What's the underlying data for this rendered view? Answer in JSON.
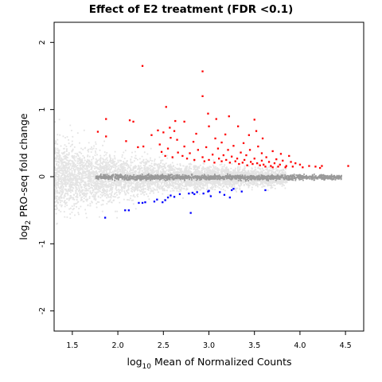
{
  "chart_data": {
    "type": "scatter",
    "title": "Effect of E2 treatment (FDR <0.1)",
    "xlabel": {
      "main": "log",
      "sub": "10",
      "rest": " Mean of Normalized Counts"
    },
    "ylabel": {
      "main": "log",
      "sub": "2",
      "rest": " PRO-seq fold change"
    },
    "xlim": [
      1.3,
      4.7
    ],
    "ylim": [
      -2.3,
      2.3
    ],
    "x_ticks": [
      1.5,
      2.0,
      2.5,
      3.0,
      3.5,
      4.0,
      4.5
    ],
    "x_tick_labels": [
      "1.5",
      "2.0",
      "2.5",
      "3.0",
      "3.5",
      "4.0",
      "4.5"
    ],
    "y_ticks": [
      -2,
      -1,
      0,
      1,
      2
    ],
    "y_tick_labels": [
      "-2",
      "-1",
      "0",
      "1",
      "2"
    ],
    "colors": {
      "background_points": "#e4e4e4",
      "nonsignificant": "#999999",
      "upregulated": "#ff0000",
      "downregulated": "#0000ff"
    },
    "series": [
      {
        "role": "upregulated",
        "points": [
          [
            2.27,
            1.65
          ],
          [
            2.93,
            1.57
          ],
          [
            2.93,
            1.2
          ],
          [
            2.53,
            1.04
          ],
          [
            2.99,
            0.94
          ],
          [
            3.22,
            0.9
          ],
          [
            3.08,
            0.86
          ],
          [
            3.5,
            0.85
          ],
          [
            2.13,
            0.84
          ],
          [
            2.17,
            0.82
          ],
          [
            1.87,
            0.86
          ],
          [
            2.63,
            0.83
          ],
          [
            2.73,
            0.82
          ],
          [
            3.0,
            0.75
          ],
          [
            3.32,
            0.75
          ],
          [
            2.57,
            0.73
          ],
          [
            2.44,
            0.69
          ],
          [
            1.78,
            0.67
          ],
          [
            2.62,
            0.68
          ],
          [
            3.52,
            0.68
          ],
          [
            2.5,
            0.66
          ],
          [
            2.86,
            0.64
          ],
          [
            3.18,
            0.63
          ],
          [
            3.44,
            0.62
          ],
          [
            2.37,
            0.62
          ],
          [
            1.87,
            0.6
          ],
          [
            2.58,
            0.58
          ],
          [
            3.07,
            0.57
          ],
          [
            3.59,
            0.57
          ],
          [
            2.65,
            0.55
          ],
          [
            2.09,
            0.53
          ],
          [
            2.83,
            0.52
          ],
          [
            3.14,
            0.51
          ],
          [
            3.38,
            0.5
          ],
          [
            2.46,
            0.48
          ],
          [
            2.28,
            0.45
          ],
          [
            2.22,
            0.44
          ],
          [
            2.73,
            0.45
          ],
          [
            3.27,
            0.46
          ],
          [
            3.54,
            0.45
          ],
          [
            2.97,
            0.44
          ],
          [
            2.55,
            0.42
          ],
          [
            3.1,
            0.42
          ],
          [
            2.88,
            0.4
          ],
          [
            3.21,
            0.4
          ],
          [
            3.45,
            0.4
          ],
          [
            3.7,
            0.38
          ],
          [
            2.48,
            0.37
          ],
          [
            2.66,
            0.36
          ],
          [
            2.79,
            0.35
          ],
          [
            3.35,
            0.36
          ],
          [
            3.58,
            0.35
          ],
          [
            3.79,
            0.34
          ],
          [
            3.04,
            0.33
          ],
          [
            2.52,
            0.31
          ],
          [
            2.71,
            0.31
          ],
          [
            3.16,
            0.32
          ],
          [
            3.41,
            0.32
          ],
          [
            3.88,
            0.31
          ],
          [
            2.6,
            0.29
          ],
          [
            2.93,
            0.29
          ],
          [
            3.25,
            0.3
          ],
          [
            3.63,
            0.29
          ],
          [
            2.76,
            0.27
          ],
          [
            3.11,
            0.27
          ],
          [
            3.31,
            0.27
          ],
          [
            3.5,
            0.27
          ],
          [
            3.74,
            0.26
          ],
          [
            2.84,
            0.25
          ],
          [
            3.0,
            0.25
          ],
          [
            3.19,
            0.25
          ],
          [
            3.39,
            0.25
          ],
          [
            3.58,
            0.24
          ],
          [
            3.81,
            0.24
          ],
          [
            2.95,
            0.23
          ],
          [
            3.14,
            0.23
          ],
          [
            3.29,
            0.23
          ],
          [
            3.46,
            0.22
          ],
          [
            3.66,
            0.22
          ],
          [
            3.9,
            0.22
          ],
          [
            3.06,
            0.21
          ],
          [
            3.23,
            0.21
          ],
          [
            3.37,
            0.21
          ],
          [
            3.53,
            0.2
          ],
          [
            3.72,
            0.2
          ],
          [
            3.95,
            0.2
          ],
          [
            3.33,
            0.19
          ],
          [
            3.48,
            0.19
          ],
          [
            3.6,
            0.18
          ],
          [
            3.78,
            0.18
          ],
          [
            4.0,
            0.18
          ],
          [
            3.42,
            0.17
          ],
          [
            3.56,
            0.17
          ],
          [
            3.68,
            0.16
          ],
          [
            3.85,
            0.16
          ],
          [
            4.1,
            0.16
          ],
          [
            3.62,
            0.15
          ],
          [
            3.76,
            0.15
          ],
          [
            3.92,
            0.15
          ],
          [
            4.17,
            0.15
          ],
          [
            4.24,
            0.16
          ],
          [
            4.53,
            0.16
          ],
          [
            3.7,
            0.14
          ],
          [
            3.84,
            0.14
          ],
          [
            4.03,
            0.14
          ],
          [
            4.22,
            0.13
          ]
        ]
      },
      {
        "role": "downregulated",
        "points": [
          [
            1.86,
            -0.61
          ],
          [
            2.08,
            -0.5
          ],
          [
            2.12,
            -0.5
          ],
          [
            2.8,
            -0.54
          ],
          [
            2.23,
            -0.39
          ],
          [
            2.27,
            -0.39
          ],
          [
            2.4,
            -0.37
          ],
          [
            2.3,
            -0.38
          ],
          [
            2.43,
            -0.34
          ],
          [
            2.52,
            -0.35
          ],
          [
            2.55,
            -0.31
          ],
          [
            2.62,
            -0.3
          ],
          [
            2.58,
            -0.28
          ],
          [
            2.68,
            -0.26
          ],
          [
            2.78,
            -0.25
          ],
          [
            2.82,
            -0.24
          ],
          [
            2.87,
            -0.23
          ],
          [
            2.94,
            -0.25
          ],
          [
            2.99,
            -0.22
          ],
          [
            3.02,
            -0.29
          ],
          [
            3.12,
            -0.23
          ],
          [
            3.17,
            -0.27
          ],
          [
            3.23,
            -0.31
          ],
          [
            3.27,
            -0.18
          ],
          [
            3.36,
            -0.22
          ],
          [
            3.62,
            -0.2
          ],
          [
            2.49,
            -0.38
          ],
          [
            2.84,
            -0.26
          ],
          [
            3.25,
            -0.2
          ],
          [
            3.0,
            -0.21
          ]
        ]
      }
    ]
  }
}
